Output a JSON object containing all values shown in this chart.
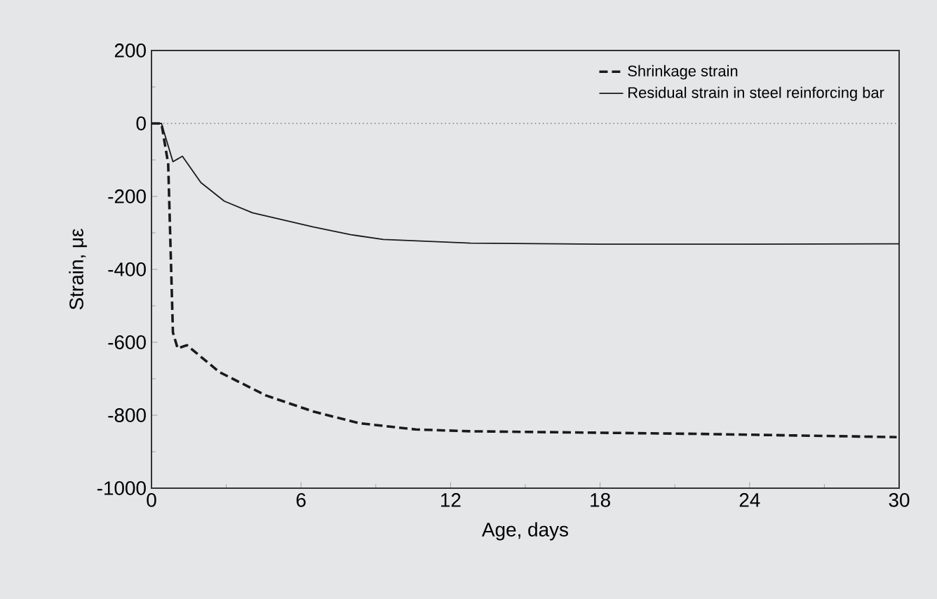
{
  "chart_data": {
    "type": "line",
    "xlabel": "Age, days",
    "ylabel": "Strain, με",
    "xlim": [
      0,
      30
    ],
    "xticks": [
      0,
      6,
      12,
      18,
      24,
      30
    ],
    "ylim": [
      -1000,
      200
    ],
    "yticks": [
      -1000,
      -800,
      -600,
      -400,
      -200,
      0,
      200
    ],
    "legend": "top right",
    "marker": "none",
    "grid": false,
    "ref_lines": [
      {
        "axis": "y",
        "value": 0,
        "color": "#808080",
        "line_style": "dotted"
      }
    ],
    "series": [
      {
        "name": "Shrinkage strain",
        "color": "#1a1a1a",
        "line_style": "dashed",
        "x": [
          0,
          0.4,
          0.67,
          0.86,
          1.05,
          1.42,
          2.73,
          4.6,
          6.5,
          8.35,
          10.6,
          12.8,
          21.8,
          29.9
        ],
        "values": [
          0,
          0,
          -111,
          -573,
          -617,
          -608,
          -682,
          -746,
          -790,
          -822,
          -839,
          -844,
          -851,
          -860
        ]
      },
      {
        "name": "Residual strain in steel reinforcing bar",
        "color": "#1a1a1a",
        "line_style": "solid",
        "x": [
          0,
          0.4,
          0.86,
          1.24,
          1.98,
          2.92,
          4.05,
          6.5,
          8,
          9.3,
          12.8,
          18,
          24,
          30
        ],
        "values": [
          0,
          0,
          -105,
          -90,
          -162,
          -213,
          -245,
          -284,
          -305,
          -318,
          -328,
          -331,
          -331,
          -330
        ]
      }
    ]
  }
}
